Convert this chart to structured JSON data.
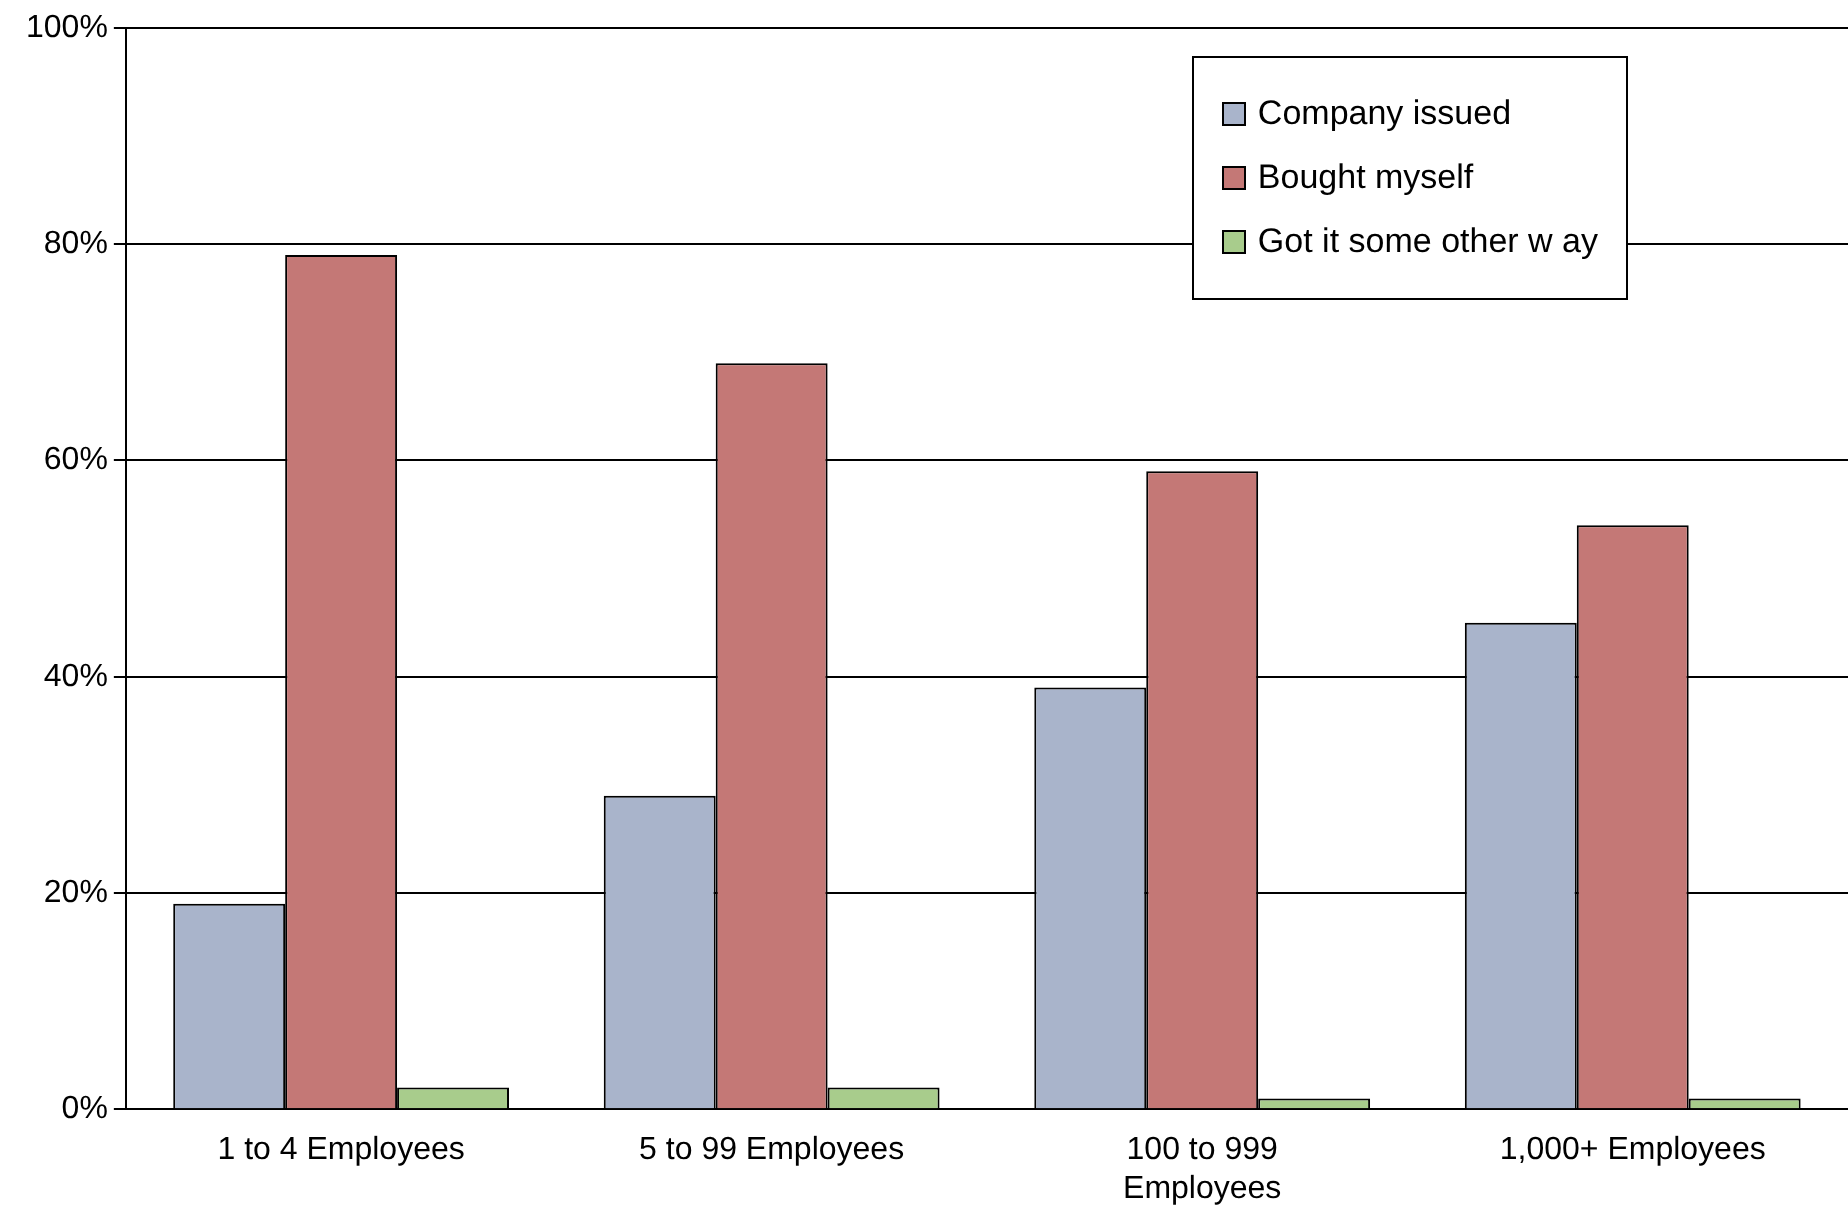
{
  "chart_data": {
    "type": "bar",
    "categories": [
      "1 to 4 Employees",
      "5 to 99 Employees",
      "100 to 999 Employees",
      "1,000+ Employees"
    ],
    "series": [
      {
        "name": "Company issued",
        "color": "#a9b4cb",
        "values": [
          19,
          29,
          39,
          45
        ]
      },
      {
        "name": "Bought myself",
        "color": "#c47876",
        "values": [
          79,
          69,
          59,
          54
        ]
      },
      {
        "name": "Got it some other w ay",
        "color": "#a8cc8c",
        "values": [
          2,
          2,
          1,
          1
        ]
      }
    ],
    "ylim": [
      0,
      100
    ],
    "yticks": [
      {
        "value": 0,
        "label": "0%"
      },
      {
        "value": 20,
        "label": "20%"
      },
      {
        "value": 40,
        "label": "40%"
      },
      {
        "value": 60,
        "label": "60%"
      },
      {
        "value": 80,
        "label": "80%"
      },
      {
        "value": 100,
        "label": "100%"
      }
    ],
    "grid": "y",
    "legend": "top right"
  }
}
